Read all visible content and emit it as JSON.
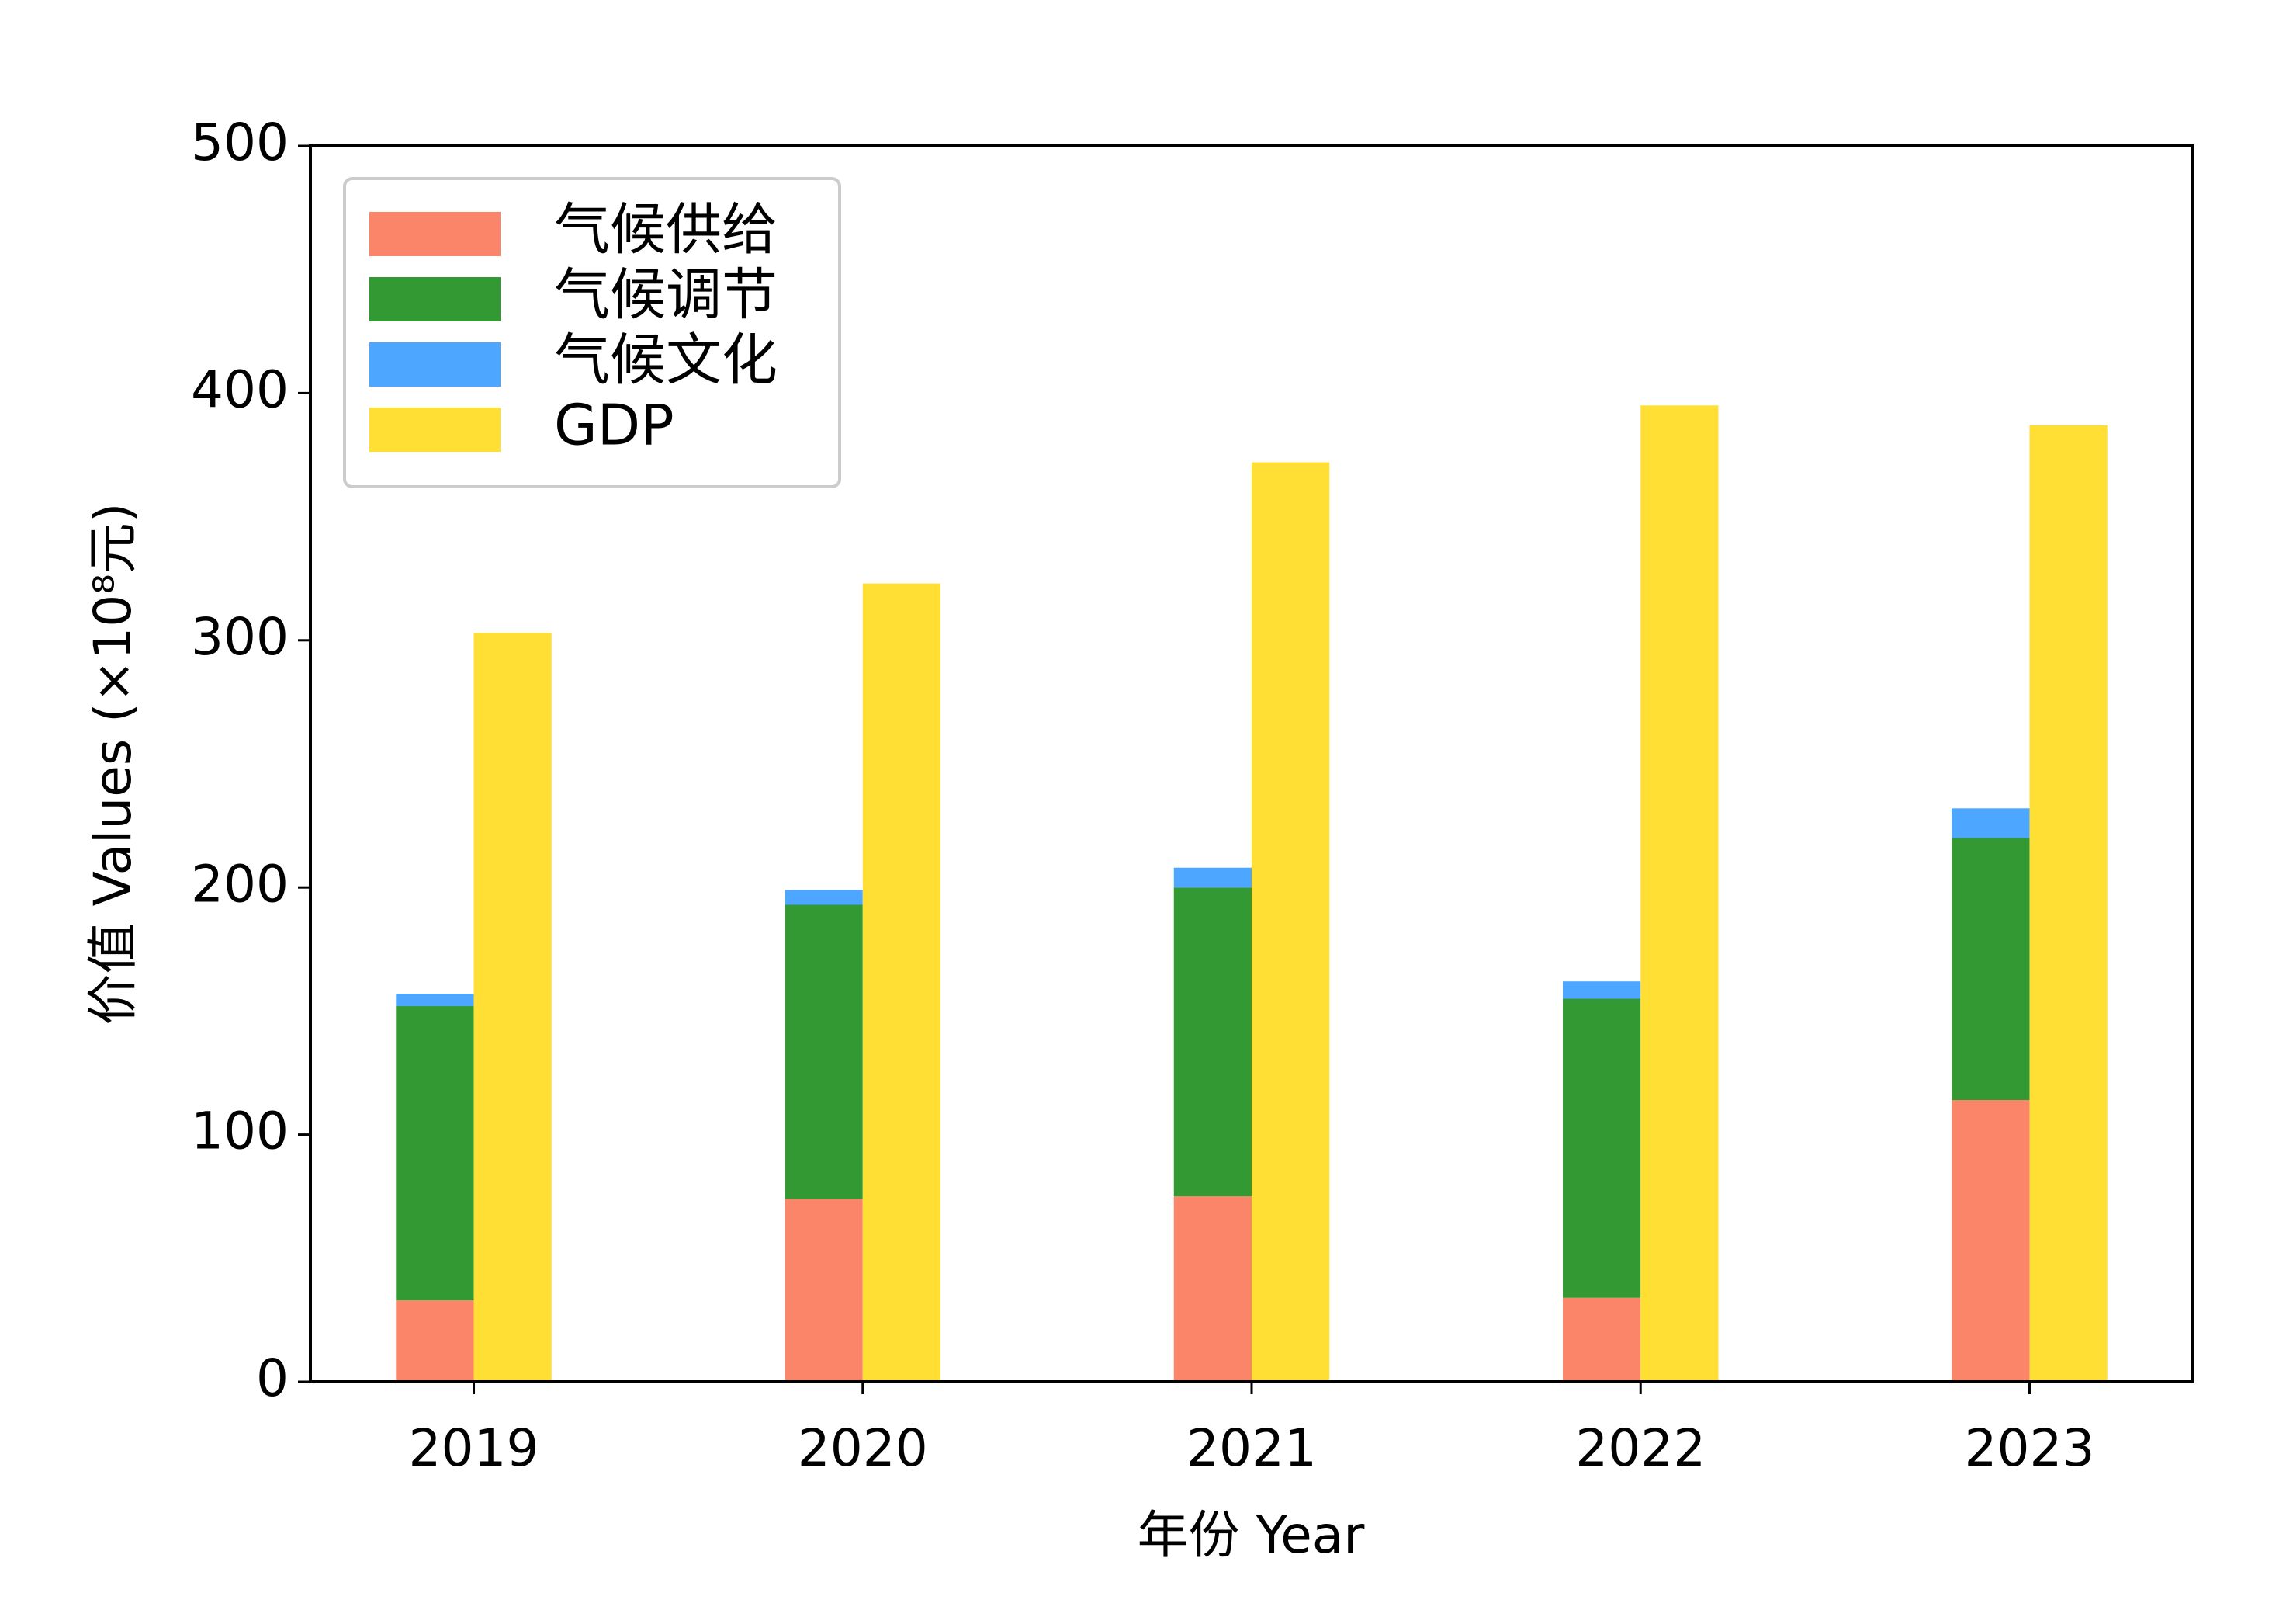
{
  "chart_data": {
    "type": "bar",
    "x_label": "年份 Year",
    "y_label": "价值 Values (×10⁸元)",
    "categories": [
      "2019",
      "2020",
      "2021",
      "2022",
      "2023"
    ],
    "series": [
      {
        "name": "气候供给",
        "color": "#fa8568",
        "stack": 0,
        "values": [
          33,
          74,
          75,
          34,
          114
        ]
      },
      {
        "name": "气候调节",
        "color": "#339933",
        "stack": 0,
        "values": [
          119,
          119,
          125,
          121,
          106
        ]
      },
      {
        "name": "气候文化",
        "color": "#4da6ff",
        "stack": 0,
        "values": [
          5,
          6,
          8,
          7,
          12
        ]
      },
      {
        "name": "GDP",
        "color": "#ffdf33",
        "stack": 1,
        "values": [
          303,
          323,
          372,
          395,
          387
        ]
      }
    ],
    "ylim": [
      0,
      500
    ],
    "yticks": [
      0,
      100,
      200,
      300,
      400,
      500
    ],
    "legend": "upper left"
  }
}
